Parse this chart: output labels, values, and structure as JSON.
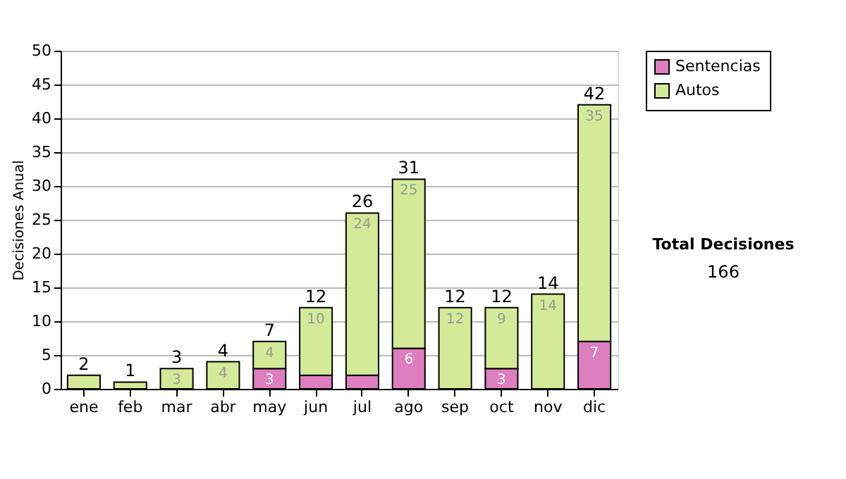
{
  "chart_data": {
    "type": "bar",
    "stacked": true,
    "ylabel": "Decisiones Anual",
    "categories": [
      "ene",
      "feb",
      "mar",
      "abr",
      "may",
      "jun",
      "jul",
      "ago",
      "sep",
      "oct",
      "nov",
      "dic"
    ],
    "series": [
      {
        "name": "Sentencias",
        "color": "#dd7ebf",
        "values": [
          0,
          0,
          0,
          0,
          3,
          2,
          2,
          6,
          0,
          3,
          0,
          7
        ],
        "value_labels": [
          null,
          null,
          null,
          null,
          "3",
          null,
          null,
          "6",
          null,
          "3",
          null,
          "7"
        ]
      },
      {
        "name": "Autos",
        "color": "#d4ea98",
        "values": [
          2,
          1,
          3,
          4,
          4,
          10,
          24,
          25,
          12,
          9,
          14,
          35
        ],
        "value_labels": [
          null,
          null,
          "3",
          "4",
          "4",
          "10",
          "24",
          "25",
          "12",
          "9",
          "14",
          "35"
        ]
      }
    ],
    "totals": [
      "2",
      "1",
      "3",
      "4",
      "7",
      "12",
      "26",
      "31",
      "12",
      "12",
      "14",
      "42"
    ],
    "ylim": [
      0,
      50
    ],
    "yticks": [
      0,
      5,
      10,
      15,
      20,
      25,
      30,
      35,
      40,
      45,
      50
    ],
    "grid": "y",
    "legend": "right",
    "annotations": [
      "Total Decisiones",
      "166"
    ]
  }
}
